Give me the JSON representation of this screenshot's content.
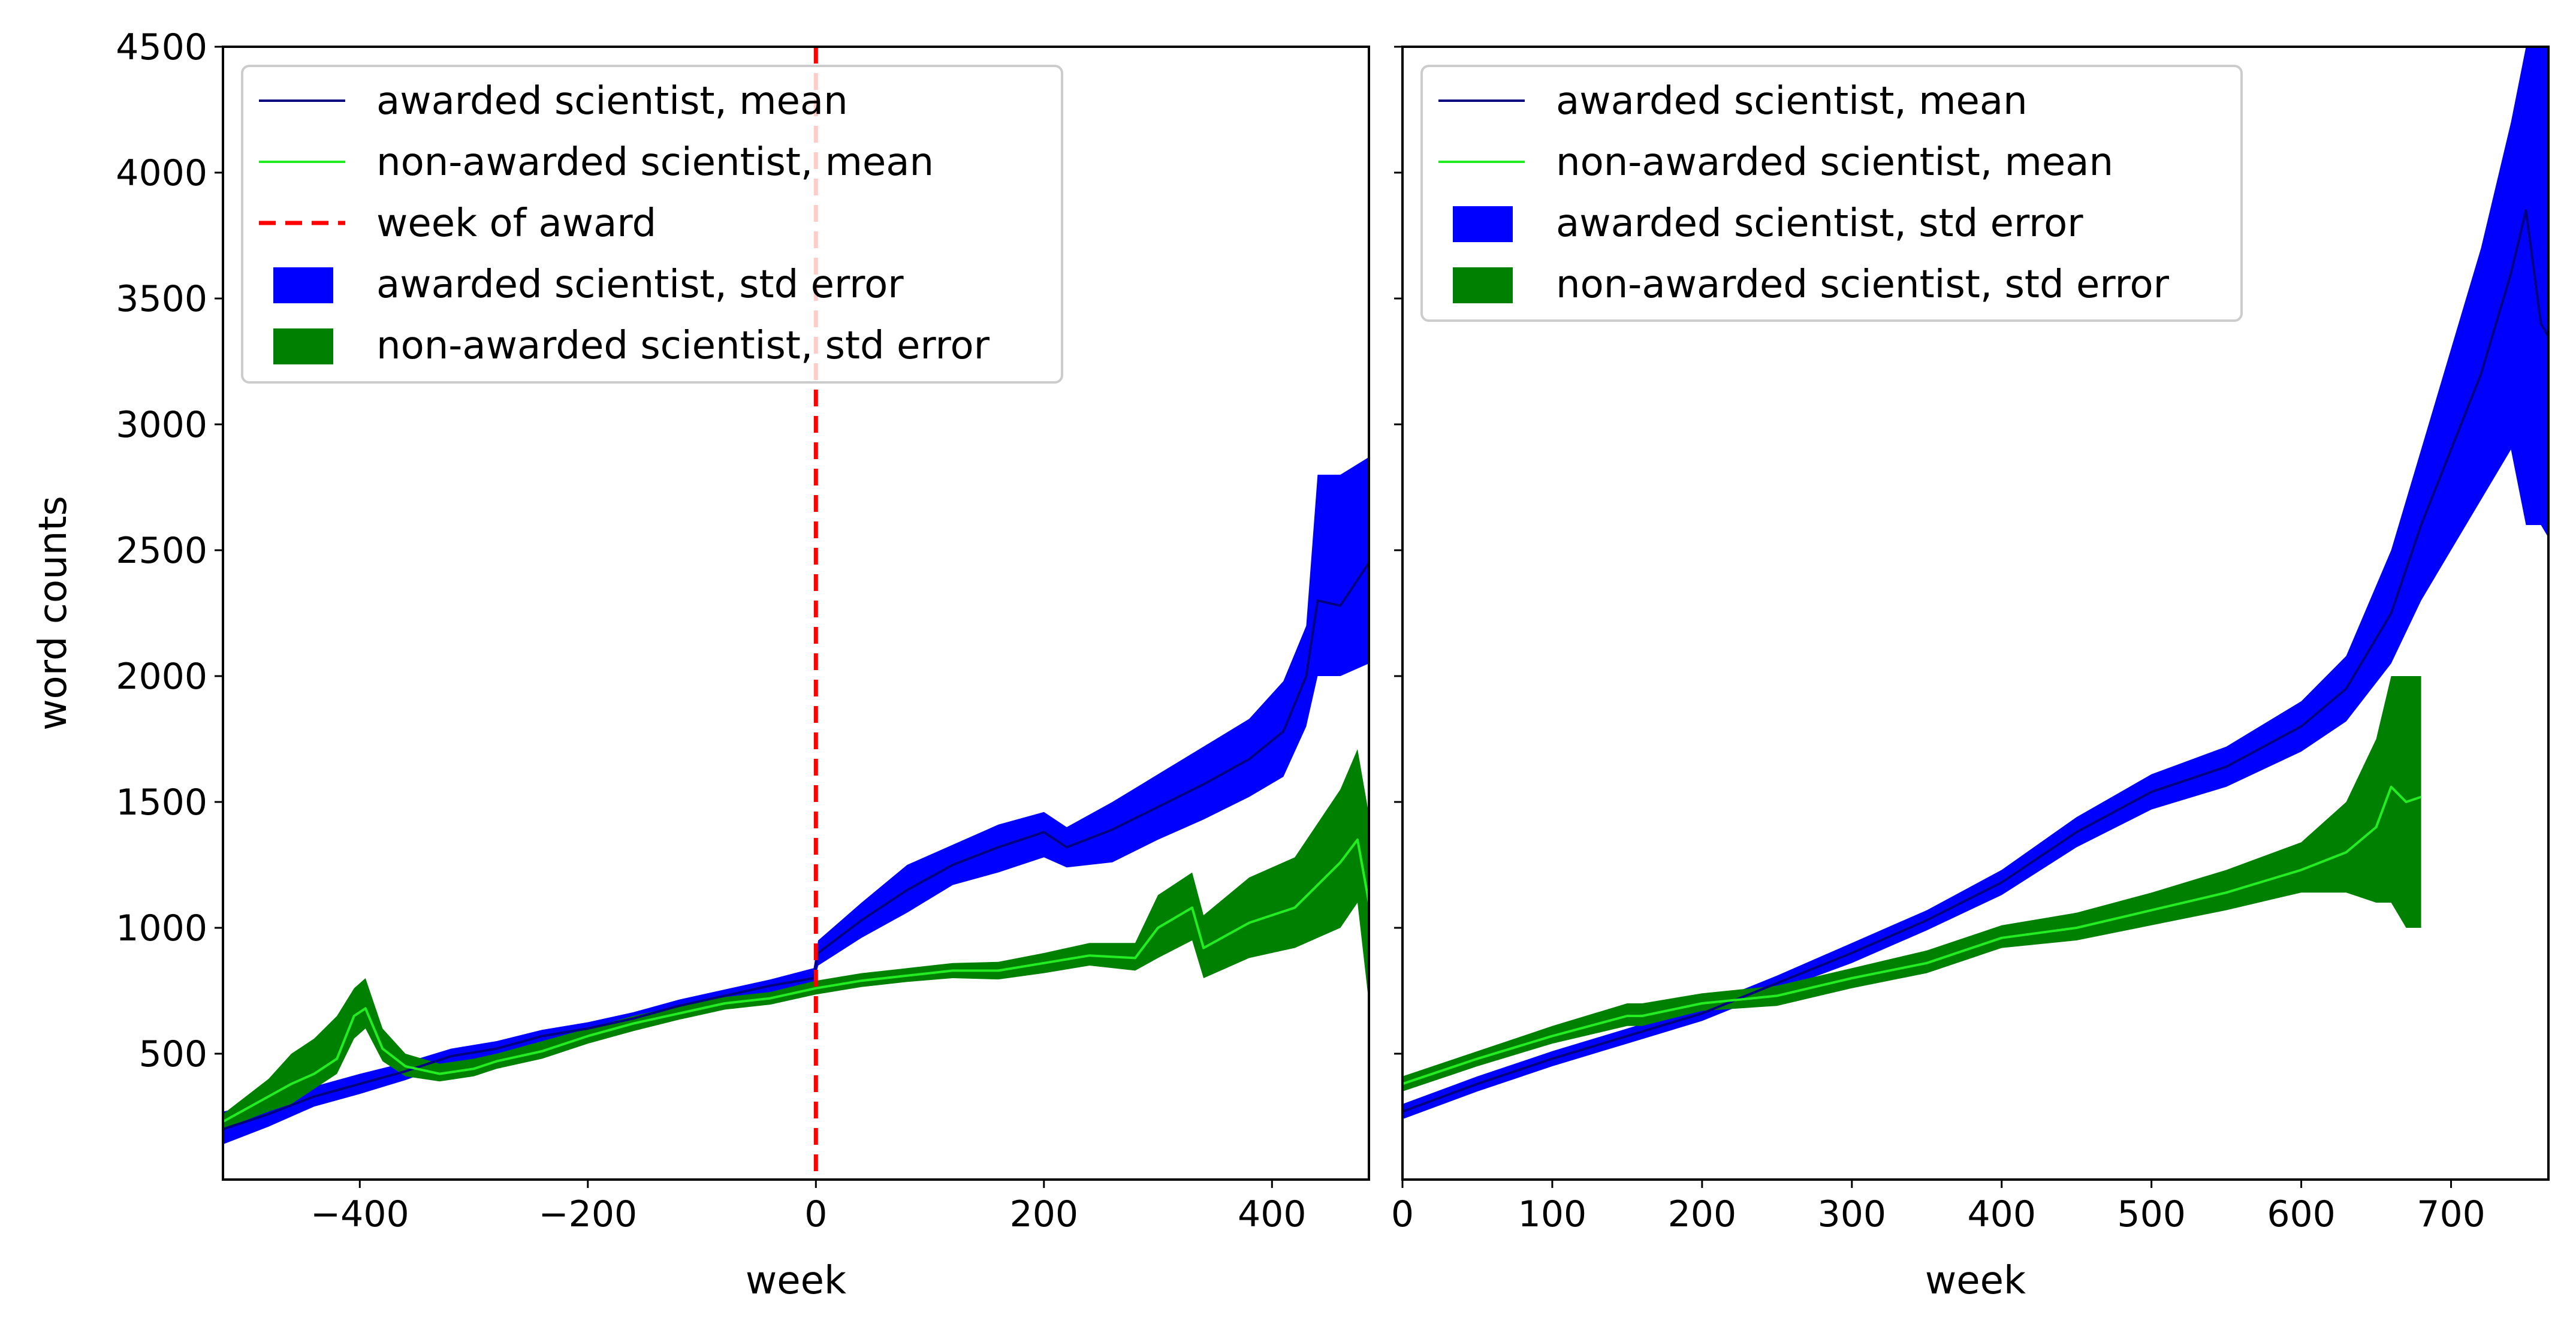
{
  "colors": {
    "awarded_mean": "#000080",
    "nonawarded_mean": "#22ee22",
    "award_line": "#ff0000",
    "awarded_se": "#0000ff",
    "nonawarded_se": "#008000"
  },
  "chart_data": [
    {
      "type": "line",
      "title": "",
      "xlabel": "week",
      "ylabel": "word counts",
      "xlim": [
        -520,
        485
      ],
      "ylim": [
        0,
        4500
      ],
      "xticks": [
        -400,
        -200,
        0,
        200,
        400
      ],
      "xtick_labels": [
        "−400",
        "−200",
        "0",
        "200",
        "400"
      ],
      "yticks": [
        500,
        1000,
        1500,
        2000,
        2500,
        3000,
        3500,
        4000,
        4500
      ],
      "ytick_labels": [
        "500",
        "1000",
        "1500",
        "2000",
        "2500",
        "3000",
        "3500",
        "4000",
        "4500"
      ],
      "legend_position": "top-left",
      "vline": {
        "x": 0,
        "label": "week of award"
      },
      "series": [
        {
          "name": "awarded scientist, mean",
          "kind": "line",
          "x": [
            -520,
            -480,
            -440,
            -400,
            -360,
            -320,
            -280,
            -240,
            -200,
            -160,
            -120,
            -80,
            -40,
            -2,
            2,
            40,
            80,
            120,
            160,
            200,
            220,
            260,
            300,
            340,
            380,
            410,
            430,
            440,
            460,
            485
          ],
          "y": [
            200,
            260,
            330,
            380,
            430,
            490,
            520,
            570,
            600,
            640,
            690,
            730,
            770,
            800,
            900,
            1030,
            1150,
            1250,
            1320,
            1380,
            1320,
            1390,
            1480,
            1570,
            1670,
            1780,
            2000,
            2300,
            2280,
            2450
          ]
        },
        {
          "name": "non-awarded scientist, mean",
          "kind": "line",
          "x": [
            -520,
            -480,
            -460,
            -440,
            -420,
            -405,
            -395,
            -380,
            -360,
            -330,
            -300,
            -280,
            -240,
            -200,
            -160,
            -120,
            -80,
            -40,
            0,
            40,
            80,
            120,
            160,
            200,
            240,
            280,
            300,
            330,
            340,
            380,
            420,
            460,
            475,
            485
          ],
          "y": [
            230,
            330,
            380,
            420,
            480,
            650,
            680,
            520,
            450,
            420,
            440,
            470,
            510,
            570,
            620,
            660,
            700,
            720,
            760,
            790,
            810,
            830,
            830,
            860,
            890,
            880,
            1000,
            1080,
            920,
            1020,
            1080,
            1260,
            1350,
            1100
          ]
        },
        {
          "name": "awarded scientist, std error",
          "kind": "band",
          "x": [
            -520,
            -480,
            -440,
            -400,
            -360,
            -320,
            -280,
            -240,
            -200,
            -160,
            -120,
            -80,
            -40,
            -2,
            2,
            40,
            80,
            120,
            160,
            200,
            220,
            260,
            300,
            340,
            380,
            410,
            430,
            440,
            460,
            485
          ],
          "lower": [
            140,
            210,
            290,
            340,
            395,
            460,
            490,
            545,
            575,
            615,
            665,
            705,
            745,
            770,
            850,
            960,
            1060,
            1170,
            1220,
            1280,
            1240,
            1260,
            1350,
            1430,
            1520,
            1600,
            1800,
            2000,
            2000,
            2050
          ],
          "upper": [
            270,
            310,
            370,
            420,
            465,
            520,
            550,
            595,
            625,
            665,
            715,
            755,
            795,
            840,
            950,
            1100,
            1250,
            1330,
            1410,
            1460,
            1400,
            1500,
            1610,
            1720,
            1830,
            1980,
            2200,
            2800,
            2800,
            2870
          ]
        },
        {
          "name": "non-awarded scientist, std error",
          "kind": "band",
          "x": [
            -520,
            -480,
            -460,
            -440,
            -420,
            -405,
            -395,
            -380,
            -360,
            -330,
            -300,
            -280,
            -240,
            -200,
            -160,
            -120,
            -80,
            -40,
            0,
            40,
            80,
            120,
            160,
            200,
            240,
            280,
            300,
            330,
            340,
            380,
            420,
            460,
            475,
            485
          ],
          "lower": [
            200,
            270,
            300,
            360,
            420,
            560,
            600,
            470,
            410,
            390,
            410,
            440,
            480,
            540,
            590,
            635,
            675,
            695,
            735,
            765,
            785,
            800,
            795,
            820,
            850,
            830,
            880,
            950,
            800,
            880,
            920,
            1000,
            1100,
            700
          ],
          "upper": [
            260,
            400,
            500,
            560,
            650,
            760,
            800,
            600,
            500,
            460,
            480,
            500,
            550,
            600,
            650,
            690,
            725,
            745,
            790,
            820,
            840,
            860,
            865,
            900,
            940,
            940,
            1130,
            1220,
            1050,
            1200,
            1280,
            1550,
            1710,
            1450
          ]
        }
      ]
    },
    {
      "type": "line",
      "title": "",
      "xlabel": "week",
      "ylabel": "",
      "xlim": [
        0,
        765
      ],
      "ylim": [
        0,
        4500
      ],
      "xticks": [
        0,
        100,
        200,
        300,
        400,
        500,
        600,
        700
      ],
      "xtick_labels": [
        "0",
        "100",
        "200",
        "300",
        "400",
        "500",
        "600",
        "700"
      ],
      "yticks": [
        500,
        1000,
        1500,
        2000,
        2500,
        3000,
        3500,
        4000,
        4500
      ],
      "legend_position": "top-left",
      "series": [
        {
          "name": "awarded scientist, mean",
          "kind": "line",
          "x": [
            0,
            50,
            100,
            150,
            200,
            250,
            300,
            350,
            400,
            450,
            500,
            550,
            600,
            630,
            660,
            680,
            700,
            720,
            740,
            750,
            760,
            765
          ],
          "y": [
            270,
            380,
            480,
            570,
            660,
            780,
            900,
            1030,
            1180,
            1380,
            1540,
            1640,
            1800,
            1950,
            2250,
            2600,
            2900,
            3200,
            3600,
            3850,
            3400,
            3350
          ]
        },
        {
          "name": "non-awarded scientist, mean",
          "kind": "line",
          "x": [
            0,
            50,
            100,
            150,
            160,
            200,
            250,
            300,
            350,
            400,
            450,
            500,
            550,
            600,
            630,
            650,
            660,
            670,
            680
          ],
          "y": [
            380,
            480,
            570,
            650,
            650,
            700,
            730,
            800,
            860,
            960,
            1000,
            1070,
            1140,
            1230,
            1300,
            1400,
            1560,
            1500,
            1520
          ]
        },
        {
          "name": "awarded scientist, std error",
          "kind": "band",
          "x": [
            0,
            50,
            100,
            150,
            200,
            250,
            300,
            350,
            400,
            450,
            500,
            550,
            600,
            630,
            660,
            680,
            700,
            720,
            740,
            750,
            760,
            765
          ],
          "lower": [
            240,
            350,
            450,
            540,
            630,
            750,
            860,
            990,
            1130,
            1320,
            1470,
            1560,
            1700,
            1820,
            2050,
            2300,
            2500,
            2700,
            2900,
            2600,
            2600,
            2550
          ],
          "upper": [
            300,
            410,
            510,
            600,
            690,
            810,
            940,
            1070,
            1230,
            1440,
            1610,
            1720,
            1900,
            2080,
            2500,
            2900,
            3300,
            3700,
            4200,
            4500,
            4500,
            4500
          ]
        },
        {
          "name": "non-awarded scientist, std error",
          "kind": "band",
          "x": [
            0,
            50,
            100,
            150,
            160,
            200,
            250,
            300,
            350,
            400,
            450,
            500,
            550,
            600,
            630,
            650,
            660,
            670,
            680
          ],
          "lower": [
            350,
            450,
            540,
            610,
            610,
            670,
            690,
            760,
            820,
            920,
            950,
            1010,
            1070,
            1140,
            1140,
            1100,
            1100,
            1000,
            1000
          ],
          "upper": [
            410,
            510,
            610,
            700,
            700,
            740,
            770,
            840,
            910,
            1010,
            1060,
            1140,
            1230,
            1340,
            1500,
            1750,
            2000,
            2000,
            2000
          ]
        }
      ]
    }
  ]
}
